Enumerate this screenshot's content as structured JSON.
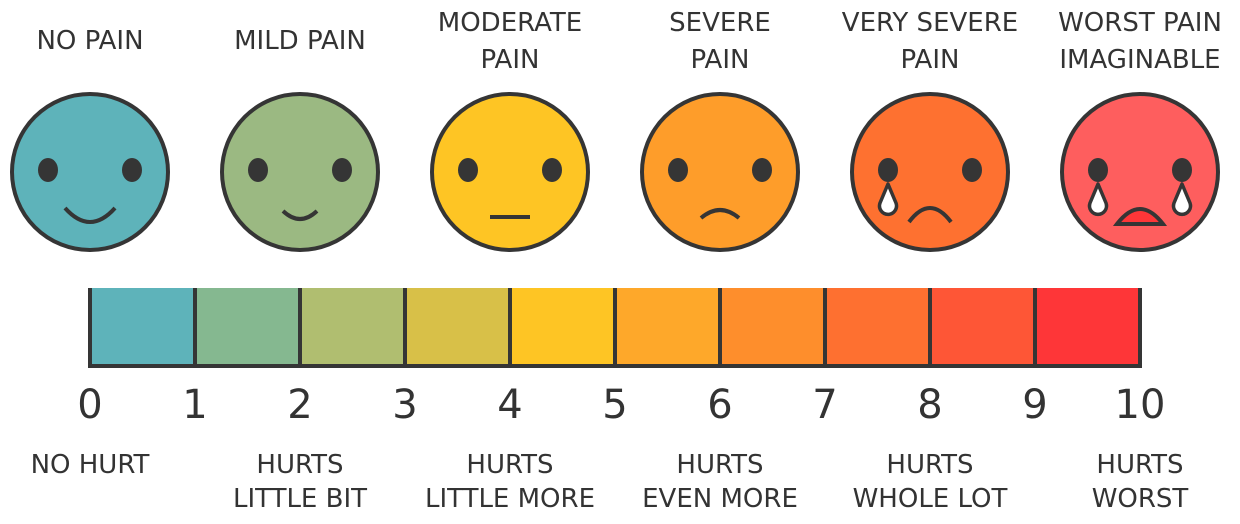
{
  "faces": [
    {
      "title": [
        "NO PAIN"
      ],
      "color": "#5EB3BA",
      "mouth": "big-smile",
      "tears": 0
    },
    {
      "title": [
        "MILD PAIN"
      ],
      "color": "#9BB982",
      "mouth": "small-smile",
      "tears": 0
    },
    {
      "title": [
        "MODERATE",
        "PAIN"
      ],
      "color": "#FEC524",
      "mouth": "flat",
      "tears": 0
    },
    {
      "title": [
        "SEVERE",
        "PAIN"
      ],
      "color": "#FE9D2A",
      "mouth": "small-frown",
      "tears": 0
    },
    {
      "title": [
        "VERY SEVERE",
        "PAIN"
      ],
      "color": "#FE7130",
      "mouth": "frown",
      "tears": 1
    },
    {
      "title": [
        "WORST PAIN",
        "IMAGINABLE"
      ],
      "color": "#FE5E5E",
      "mouth": "open",
      "tears": 2
    }
  ],
  "scale": {
    "numbers": [
      "0",
      "1",
      "2",
      "3",
      "4",
      "5",
      "6",
      "7",
      "8",
      "9",
      "10"
    ],
    "segment_colors": [
      "#5EB3BA",
      "#85B890",
      "#B0BE70",
      "#D8C048",
      "#FEC524",
      "#FEA82A",
      "#FE8E2C",
      "#FE7030",
      "#FE5636",
      "#FE3638"
    ]
  },
  "descriptors": [
    [
      "NO HURT"
    ],
    [
      "HURTS",
      "LITTLE BIT"
    ],
    [
      "HURTS",
      "LITTLE MORE"
    ],
    [
      "HURTS",
      "EVEN MORE"
    ],
    [
      "HURTS",
      "WHOLE LOT"
    ],
    [
      "HURTS",
      "WORST"
    ]
  ],
  "colors": {
    "outline": "#353535",
    "mouth_open_fill": "#FE3638",
    "tear_fill": "#FFFFFF"
  }
}
